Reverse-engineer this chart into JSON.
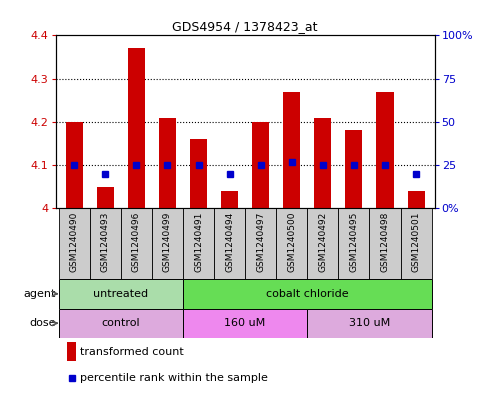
{
  "title": "GDS4954 / 1378423_at",
  "samples": [
    "GSM1240490",
    "GSM1240493",
    "GSM1240496",
    "GSM1240499",
    "GSM1240491",
    "GSM1240494",
    "GSM1240497",
    "GSM1240500",
    "GSM1240492",
    "GSM1240495",
    "GSM1240498",
    "GSM1240501"
  ],
  "red_values": [
    4.2,
    4.05,
    4.37,
    4.21,
    4.16,
    4.04,
    4.2,
    4.27,
    4.21,
    4.18,
    4.27,
    4.04
  ],
  "blue_values": [
    25,
    20,
    25,
    25,
    25,
    20,
    25,
    27,
    25,
    25,
    25,
    20
  ],
  "ylim": [
    4.0,
    4.4
  ],
  "y2lim": [
    0,
    100
  ],
  "yticks": [
    4.0,
    4.1,
    4.2,
    4.3,
    4.4
  ],
  "y2ticks": [
    0,
    25,
    50,
    75,
    100
  ],
  "bar_color": "#cc0000",
  "dot_color": "#0000cc",
  "agent_groups": [
    {
      "label": "untreated",
      "start": 0,
      "end": 4,
      "color": "#aaddaa"
    },
    {
      "label": "cobalt chloride",
      "start": 4,
      "end": 12,
      "color": "#66dd55"
    }
  ],
  "dose_groups": [
    {
      "label": "control",
      "start": 0,
      "end": 4,
      "color": "#ddaadd"
    },
    {
      "label": "160 uM",
      "start": 4,
      "end": 8,
      "color": "#ee88ee"
    },
    {
      "label": "310 uM",
      "start": 8,
      "end": 12,
      "color": "#ddaadd"
    }
  ],
  "legend_items": [
    {
      "color": "#cc0000",
      "label": "transformed count"
    },
    {
      "color": "#0000cc",
      "label": "percentile rank within the sample"
    }
  ],
  "bar_width": 0.55,
  "bg_color": "#ffffff",
  "ylabel_color": "#cc0000",
  "y2label_color": "#0000cc",
  "sample_box_color": "#cccccc",
  "gridline_ticks": [
    4.1,
    4.2,
    4.3
  ]
}
